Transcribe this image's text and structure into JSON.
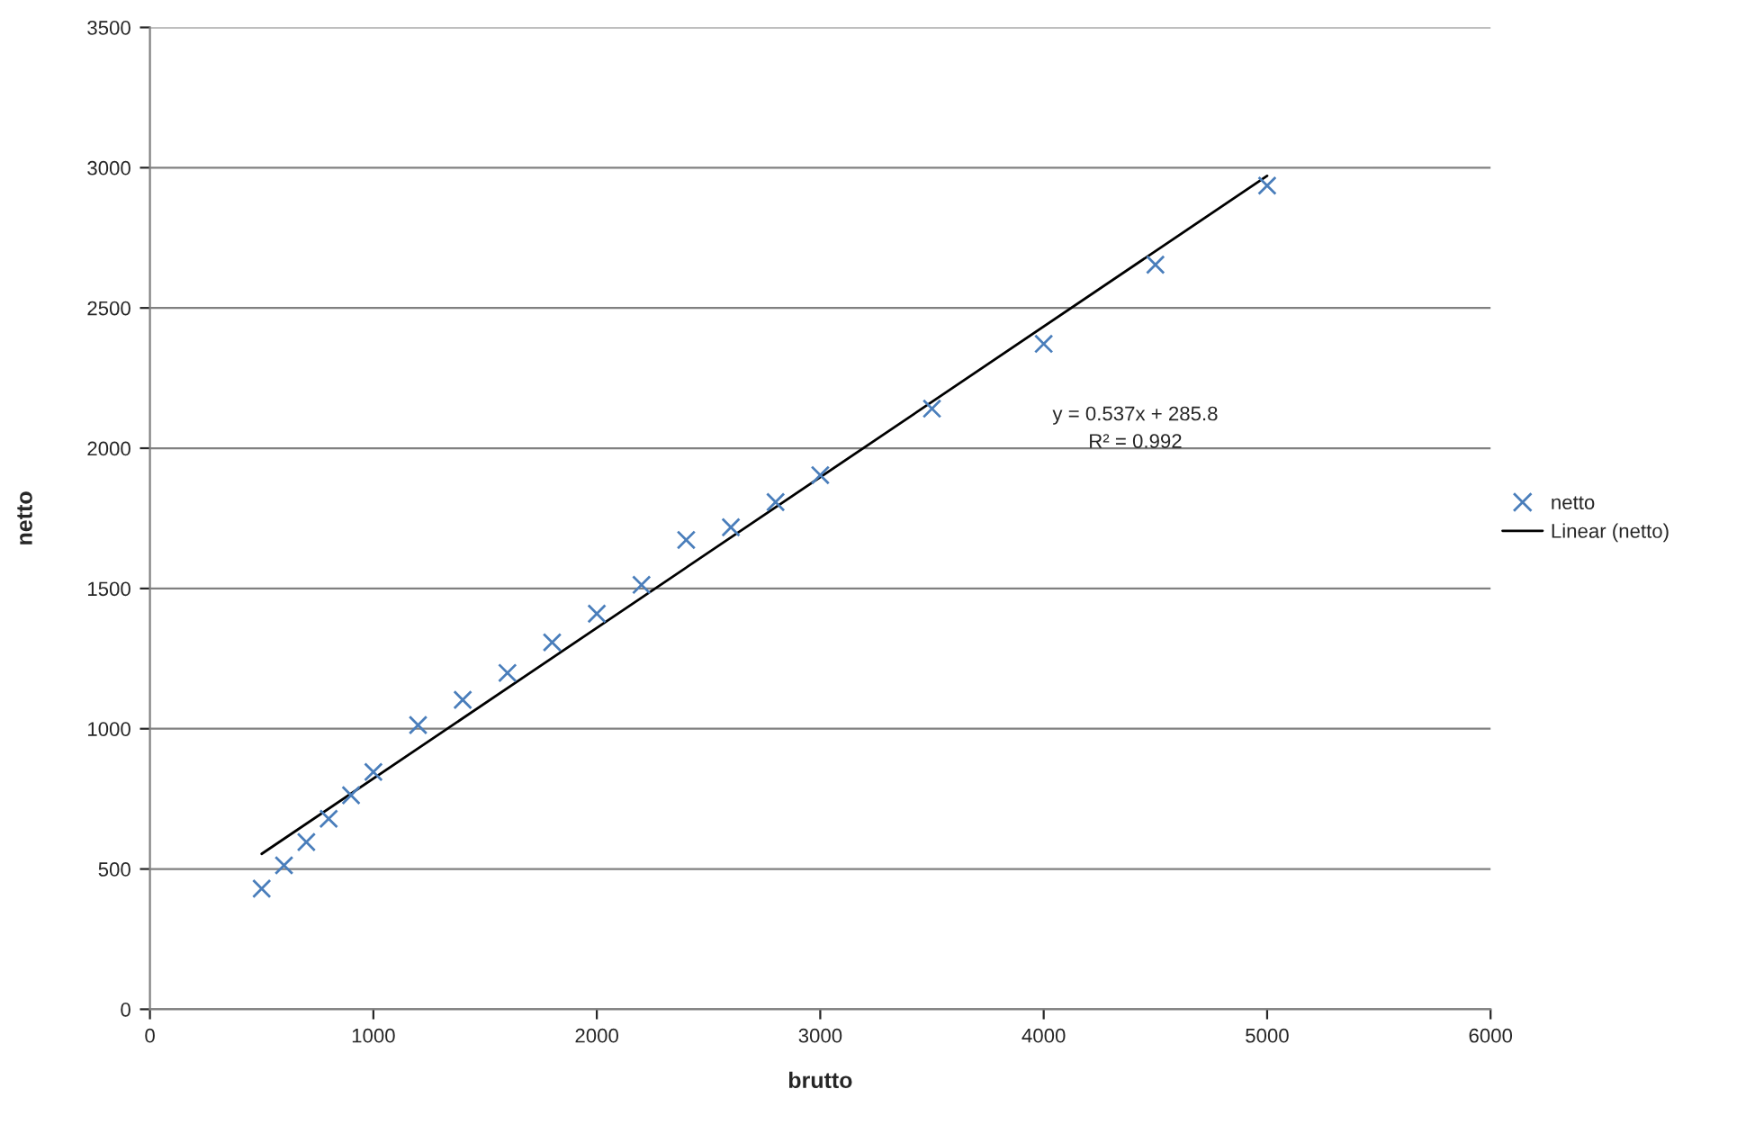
{
  "chart_data": {
    "type": "scatter",
    "xlabel": "brutto",
    "ylabel": "netto",
    "xlim": [
      0,
      6000
    ],
    "xticks": [
      0,
      1000,
      2000,
      3000,
      4000,
      5000,
      6000
    ],
    "ylim": [
      0,
      3500
    ],
    "yticks": [
      0,
      500,
      1000,
      1500,
      2000,
      2500,
      3000,
      3500
    ],
    "grid": "y",
    "legend": "right",
    "series": [
      {
        "name": "netto",
        "marker": "cross",
        "color": "#4a7ebb",
        "x": [
          500,
          600,
          700,
          800,
          900,
          1000,
          1200,
          1400,
          1600,
          1800,
          2000,
          2200,
          2400,
          2600,
          2800,
          3000,
          3500,
          4000,
          4500,
          5000
        ],
        "values": [
          430,
          513,
          596,
          679,
          763,
          846,
          1013,
          1103,
          1199,
          1308,
          1410,
          1513,
          1673,
          1718,
          1808,
          1904,
          2141,
          2372,
          2654,
          2936
        ]
      },
      {
        "name": "Linear (netto)",
        "type": "line",
        "marker": "none",
        "line_style": "solid",
        "color": "#000000",
        "x": [
          500,
          5000
        ],
        "values": [
          554,
          2971
        ]
      }
    ],
    "annotations": [
      "y = 0.537x + 285.8",
      "R² = 0.992"
    ]
  }
}
